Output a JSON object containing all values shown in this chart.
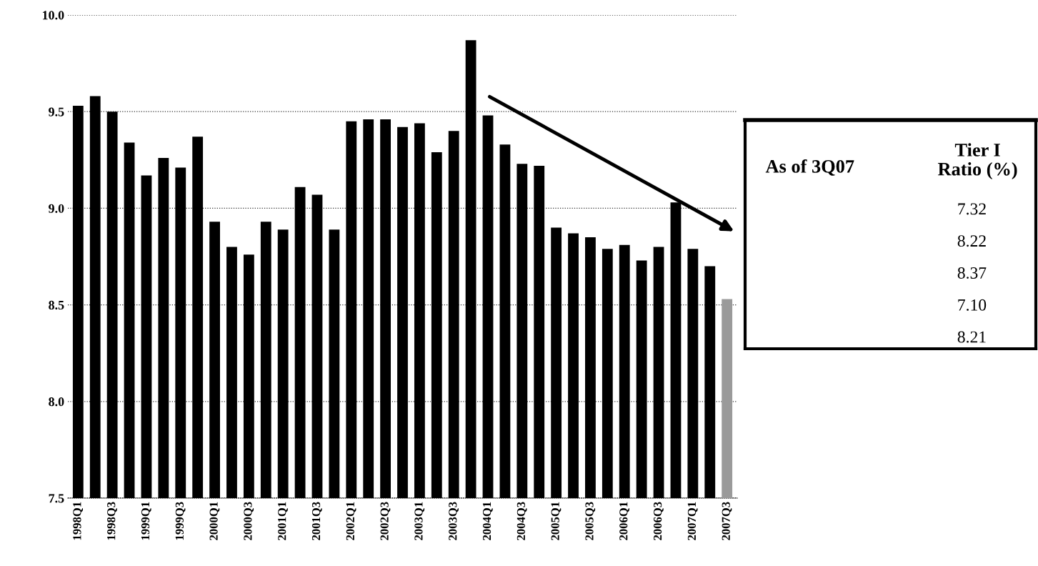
{
  "chart_data": [
    {
      "type": "bar",
      "categories": [
        "1998Q1",
        null,
        "1998Q3",
        null,
        "1999Q1",
        null,
        "1999Q3",
        null,
        "2000Q1",
        null,
        "2000Q3",
        null,
        "2001Q1",
        null,
        "2001Q3",
        null,
        "2002Q1",
        null,
        "2002Q3",
        null,
        "2003Q1",
        null,
        "2003Q3",
        null,
        "2004Q1",
        null,
        "2004Q3",
        null,
        "2005Q1",
        null,
        "2005Q3",
        null,
        "2006Q1",
        null,
        "2006Q3",
        null,
        "2007Q1",
        null,
        "2007Q3"
      ],
      "values": [
        9.53,
        9.58,
        9.5,
        9.34,
        9.17,
        9.26,
        9.21,
        9.37,
        8.93,
        8.8,
        8.76,
        8.93,
        8.89,
        9.11,
        9.07,
        8.89,
        9.45,
        9.46,
        9.46,
        9.42,
        9.44,
        9.29,
        9.4,
        9.87,
        9.48,
        9.33,
        9.23,
        9.22,
        8.9,
        8.87,
        8.85,
        8.79,
        8.81,
        8.73,
        8.8,
        9.03,
        8.79,
        8.7,
        8.53
      ],
      "colors": [
        "#000000",
        "#000000",
        "#000000",
        "#000000",
        "#000000",
        "#000000",
        "#000000",
        "#000000",
        "#000000",
        "#000000",
        "#000000",
        "#000000",
        "#000000",
        "#000000",
        "#000000",
        "#000000",
        "#000000",
        "#000000",
        "#000000",
        "#000000",
        "#000000",
        "#000000",
        "#000000",
        "#000000",
        "#000000",
        "#000000",
        "#000000",
        "#000000",
        "#000000",
        "#000000",
        "#000000",
        "#000000",
        "#000000",
        "#000000",
        "#000000",
        "#000000",
        "#000000",
        "#000000",
        "#9a9a9a"
      ],
      "ylim": [
        7.5,
        10.0
      ],
      "yticks": [
        {
          "value": 7.5,
          "label": "7.5"
        },
        {
          "value": 8.0,
          "label": "8.0"
        },
        {
          "value": 8.5,
          "label": "8.5"
        },
        {
          "value": 9.0,
          "label": "9.0"
        },
        {
          "value": 9.5,
          "label": "9.5"
        },
        {
          "value": 10.0,
          "label": "10.0"
        }
      ],
      "grid": "y",
      "line_style": "dotted"
    },
    {
      "type": "other",
      "annotations": [
        "As of 3Q07",
        "Tier I\nRatio (%)"
      ],
      "categories": [
        null,
        null,
        null,
        null,
        null
      ],
      "values": [
        7.32,
        8.22,
        8.37,
        7.1,
        8.21
      ],
      "value_labels": [
        "7.32",
        "8.22",
        "8.37",
        "7.10",
        "8.21"
      ]
    }
  ]
}
